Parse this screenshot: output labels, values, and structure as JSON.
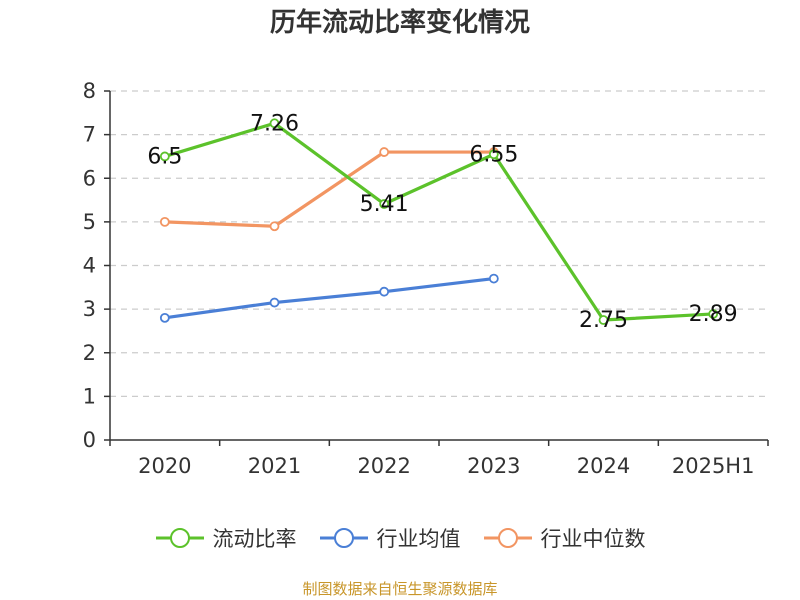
{
  "title": "历年流动比率变化情况",
  "source": "制图数据来自恒生聚源数据库",
  "chart_data": {
    "type": "line",
    "title": "历年流动比率变化情况",
    "categories": [
      "2020",
      "2021",
      "2022",
      "2023",
      "2024",
      "2025H1"
    ],
    "ylim": [
      0,
      8
    ],
    "yticks": [
      0,
      1,
      2,
      3,
      4,
      5,
      6,
      7,
      8
    ],
    "grid": true,
    "legend_position": "bottom",
    "series": [
      {
        "name": "流动比率",
        "color": "#5cc22b",
        "values": [
          6.5,
          7.26,
          5.41,
          6.55,
          2.75,
          2.89
        ],
        "labels": [
          "6.5",
          "7.26",
          "5.41",
          "6.55",
          "2.75",
          "2.89"
        ]
      },
      {
        "name": "行业均值",
        "color": "#4a7fd6",
        "values": [
          2.8,
          3.15,
          3.4,
          3.7,
          null,
          null
        ]
      },
      {
        "name": "行业中位数",
        "color": "#f29562",
        "values": [
          5.0,
          4.9,
          6.6,
          6.6,
          null,
          null
        ]
      }
    ]
  }
}
